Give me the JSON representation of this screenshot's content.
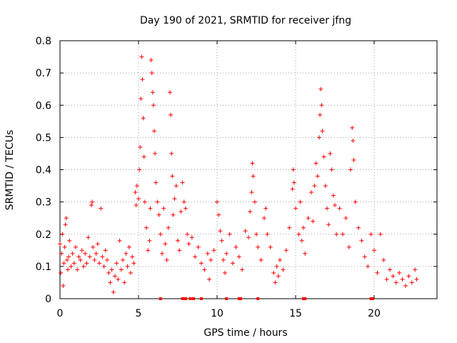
{
  "chart_data": {
    "type": "scatter",
    "title": "Day 190 of 2021, SRMTID for receiver jfng",
    "xlabel": "GPS time / hours",
    "ylabel": "SRMTID / TECUs",
    "xlim": [
      0,
      24
    ],
    "ylim": [
      0,
      0.8
    ],
    "xticks": [
      0,
      5,
      10,
      15,
      20
    ],
    "xtick_labels": [
      "0",
      "5",
      "10",
      "15",
      "20"
    ],
    "yticks": [
      0,
      0.1,
      0.2,
      0.3,
      0.4,
      0.5,
      0.6,
      0.7,
      0.8
    ],
    "ytick_labels": [
      "0",
      "0.1",
      "0.2",
      "0.3",
      "0.4",
      "0.5",
      "0.6",
      "0.7",
      "0.8"
    ],
    "grid": true,
    "marker": "+",
    "color": "#ff0000",
    "series": [
      {
        "name": "SRMTID",
        "points": [
          [
            0.0,
            0.17
          ],
          [
            0.05,
            0.08
          ],
          [
            0.1,
            0.14
          ],
          [
            0.15,
            0.2
          ],
          [
            0.2,
            0.04
          ],
          [
            0.25,
            0.11
          ],
          [
            0.3,
            0.16
          ],
          [
            0.35,
            0.23
          ],
          [
            0.4,
            0.25
          ],
          [
            0.45,
            0.12
          ],
          [
            0.5,
            0.09
          ],
          [
            0.55,
            0.13
          ],
          [
            0.6,
            0.18
          ],
          [
            0.7,
            0.1
          ],
          [
            0.8,
            0.14
          ],
          [
            0.9,
            0.11
          ],
          [
            1.0,
            0.16
          ],
          [
            1.1,
            0.09
          ],
          [
            1.2,
            0.13
          ],
          [
            1.3,
            0.12
          ],
          [
            1.4,
            0.15
          ],
          [
            1.5,
            0.1
          ],
          [
            1.6,
            0.14
          ],
          [
            1.7,
            0.11
          ],
          [
            1.8,
            0.19
          ],
          [
            1.9,
            0.13
          ],
          [
            2.0,
            0.29
          ],
          [
            2.05,
            0.3
          ],
          [
            2.1,
            0.16
          ],
          [
            2.2,
            0.12
          ],
          [
            2.3,
            0.14
          ],
          [
            2.4,
            0.17
          ],
          [
            2.5,
            0.11
          ],
          [
            2.6,
            0.28
          ],
          [
            2.7,
            0.13
          ],
          [
            2.8,
            0.1
          ],
          [
            2.9,
            0.15
          ],
          [
            3.0,
            0.12
          ],
          [
            3.1,
            0.08
          ],
          [
            3.2,
            0.05
          ],
          [
            3.3,
            0.09
          ],
          [
            3.4,
            0.02
          ],
          [
            3.5,
            0.07
          ],
          [
            3.6,
            0.11
          ],
          [
            3.7,
            0.06
          ],
          [
            3.8,
            0.18
          ],
          [
            3.9,
            0.09
          ],
          [
            4.0,
            0.12
          ],
          [
            4.1,
            0.05
          ],
          [
            4.2,
            0.14
          ],
          [
            4.3,
            0.1
          ],
          [
            4.4,
            0.16
          ],
          [
            4.5,
            0.08
          ],
          [
            4.6,
            0.13
          ],
          [
            4.7,
            0.11
          ],
          [
            4.8,
            0.33
          ],
          [
            4.85,
            0.29
          ],
          [
            4.9,
            0.35
          ],
          [
            5.0,
            0.31
          ],
          [
            5.05,
            0.4
          ],
          [
            5.1,
            0.47
          ],
          [
            5.15,
            0.62
          ],
          [
            5.2,
            0.75
          ],
          [
            5.25,
            0.68
          ],
          [
            5.3,
            0.56
          ],
          [
            5.35,
            0.44
          ],
          [
            5.4,
            0.3
          ],
          [
            5.5,
            0.22
          ],
          [
            5.6,
            0.15
          ],
          [
            5.7,
            0.18
          ],
          [
            5.75,
            0.28
          ],
          [
            5.8,
            0.74
          ],
          [
            5.85,
            0.7
          ],
          [
            5.9,
            0.64
          ],
          [
            5.95,
            0.6
          ],
          [
            6.0,
            0.52
          ],
          [
            6.05,
            0.45
          ],
          [
            6.1,
            0.36
          ],
          [
            6.2,
            0.3
          ],
          [
            6.3,
            0.26
          ],
          [
            6.4,
            0.2
          ],
          [
            6.5,
            0.14
          ],
          [
            6.6,
            0.28
          ],
          [
            6.7,
            0.17
          ],
          [
            6.8,
            0.12
          ],
          [
            6.9,
            0.22
          ],
          [
            7.0,
            0.64
          ],
          [
            7.05,
            0.57
          ],
          [
            7.1,
            0.45
          ],
          [
            7.15,
            0.38
          ],
          [
            7.2,
            0.26
          ],
          [
            7.3,
            0.31
          ],
          [
            7.4,
            0.35
          ],
          [
            7.5,
            0.18
          ],
          [
            7.6,
            0.15
          ],
          [
            7.7,
            0.27
          ],
          [
            7.8,
            0.36
          ],
          [
            7.9,
            0.3
          ],
          [
            8.0,
            0.28
          ],
          [
            8.1,
            0.2
          ],
          [
            8.2,
            0.17
          ],
          [
            8.4,
            0.19
          ],
          [
            8.6,
            0.13
          ],
          [
            8.8,
            0.16
          ],
          [
            9.0,
            0.11
          ],
          [
            9.2,
            0.09
          ],
          [
            9.4,
            0.14
          ],
          [
            9.5,
            0.06
          ],
          [
            9.6,
            0.12
          ],
          [
            9.8,
            0.15
          ],
          [
            10.0,
            0.3
          ],
          [
            10.1,
            0.26
          ],
          [
            10.2,
            0.21
          ],
          [
            10.3,
            0.18
          ],
          [
            10.4,
            0.12
          ],
          [
            10.5,
            0.08
          ],
          [
            10.6,
            0.14
          ],
          [
            10.8,
            0.2
          ],
          [
            11.0,
            0.11
          ],
          [
            11.2,
            0.16
          ],
          [
            11.4,
            0.13
          ],
          [
            11.6,
            0.09
          ],
          [
            11.8,
            0.21
          ],
          [
            12.0,
            0.19
          ],
          [
            12.1,
            0.27
          ],
          [
            12.2,
            0.33
          ],
          [
            12.25,
            0.42
          ],
          [
            12.3,
            0.38
          ],
          [
            12.4,
            0.3
          ],
          [
            12.5,
            0.2
          ],
          [
            12.6,
            0.16
          ],
          [
            12.8,
            0.12
          ],
          [
            13.0,
            0.25
          ],
          [
            13.1,
            0.28
          ],
          [
            13.2,
            0.2
          ],
          [
            13.4,
            0.16
          ],
          [
            13.6,
            0.08
          ],
          [
            13.7,
            0.05
          ],
          [
            13.8,
            0.1
          ],
          [
            13.9,
            0.07
          ],
          [
            14.0,
            0.12
          ],
          [
            14.2,
            0.09
          ],
          [
            14.4,
            0.15
          ],
          [
            14.6,
            0.22
          ],
          [
            14.8,
            0.34
          ],
          [
            14.85,
            0.4
          ],
          [
            14.9,
            0.36
          ],
          [
            15.0,
            0.28
          ],
          [
            15.2,
            0.2
          ],
          [
            15.3,
            0.3
          ],
          [
            15.4,
            0.18
          ],
          [
            15.5,
            0.22
          ],
          [
            15.6,
            0.14
          ],
          [
            15.8,
            0.25
          ],
          [
            16.0,
            0.33
          ],
          [
            16.1,
            0.24
          ],
          [
            16.2,
            0.35
          ],
          [
            16.3,
            0.42
          ],
          [
            16.4,
            0.38
          ],
          [
            16.5,
            0.5
          ],
          [
            16.55,
            0.57
          ],
          [
            16.6,
            0.65
          ],
          [
            16.65,
            0.6
          ],
          [
            16.7,
            0.52
          ],
          [
            16.8,
            0.44
          ],
          [
            16.9,
            0.35
          ],
          [
            17.0,
            0.28
          ],
          [
            17.1,
            0.23
          ],
          [
            17.2,
            0.45
          ],
          [
            17.3,
            0.4
          ],
          [
            17.4,
            0.32
          ],
          [
            17.5,
            0.29
          ],
          [
            17.6,
            0.2
          ],
          [
            17.8,
            0.28
          ],
          [
            18.0,
            0.2
          ],
          [
            18.2,
            0.25
          ],
          [
            18.4,
            0.16
          ],
          [
            18.5,
            0.4
          ],
          [
            18.6,
            0.53
          ],
          [
            18.65,
            0.49
          ],
          [
            18.7,
            0.43
          ],
          [
            18.8,
            0.3
          ],
          [
            19.0,
            0.22
          ],
          [
            19.2,
            0.18
          ],
          [
            19.4,
            0.13
          ],
          [
            19.6,
            0.1
          ],
          [
            19.8,
            0.2
          ],
          [
            20.0,
            0.15
          ],
          [
            20.2,
            0.08
          ],
          [
            20.4,
            0.2
          ],
          [
            20.6,
            0.12
          ],
          [
            20.8,
            0.06
          ],
          [
            21.0,
            0.09
          ],
          [
            21.2,
            0.07
          ],
          [
            21.4,
            0.05
          ],
          [
            21.6,
            0.08
          ],
          [
            21.8,
            0.06
          ],
          [
            22.0,
            0.04
          ],
          [
            22.2,
            0.07
          ],
          [
            22.4,
            0.05
          ],
          [
            22.6,
            0.09
          ],
          [
            22.7,
            0.06
          ],
          [
            6.4,
            0.0
          ],
          [
            7.8,
            0.0
          ],
          [
            7.9,
            0.0
          ],
          [
            8.0,
            0.0
          ],
          [
            8.3,
            0.0
          ],
          [
            8.5,
            0.0
          ],
          [
            9.0,
            0.0
          ],
          [
            10.6,
            0.0
          ],
          [
            11.4,
            0.0
          ],
          [
            11.5,
            0.0
          ],
          [
            12.6,
            0.0
          ],
          [
            15.5,
            0.0
          ],
          [
            15.6,
            0.0
          ],
          [
            19.8,
            0.0
          ],
          [
            19.9,
            0.0
          ]
        ]
      }
    ]
  }
}
